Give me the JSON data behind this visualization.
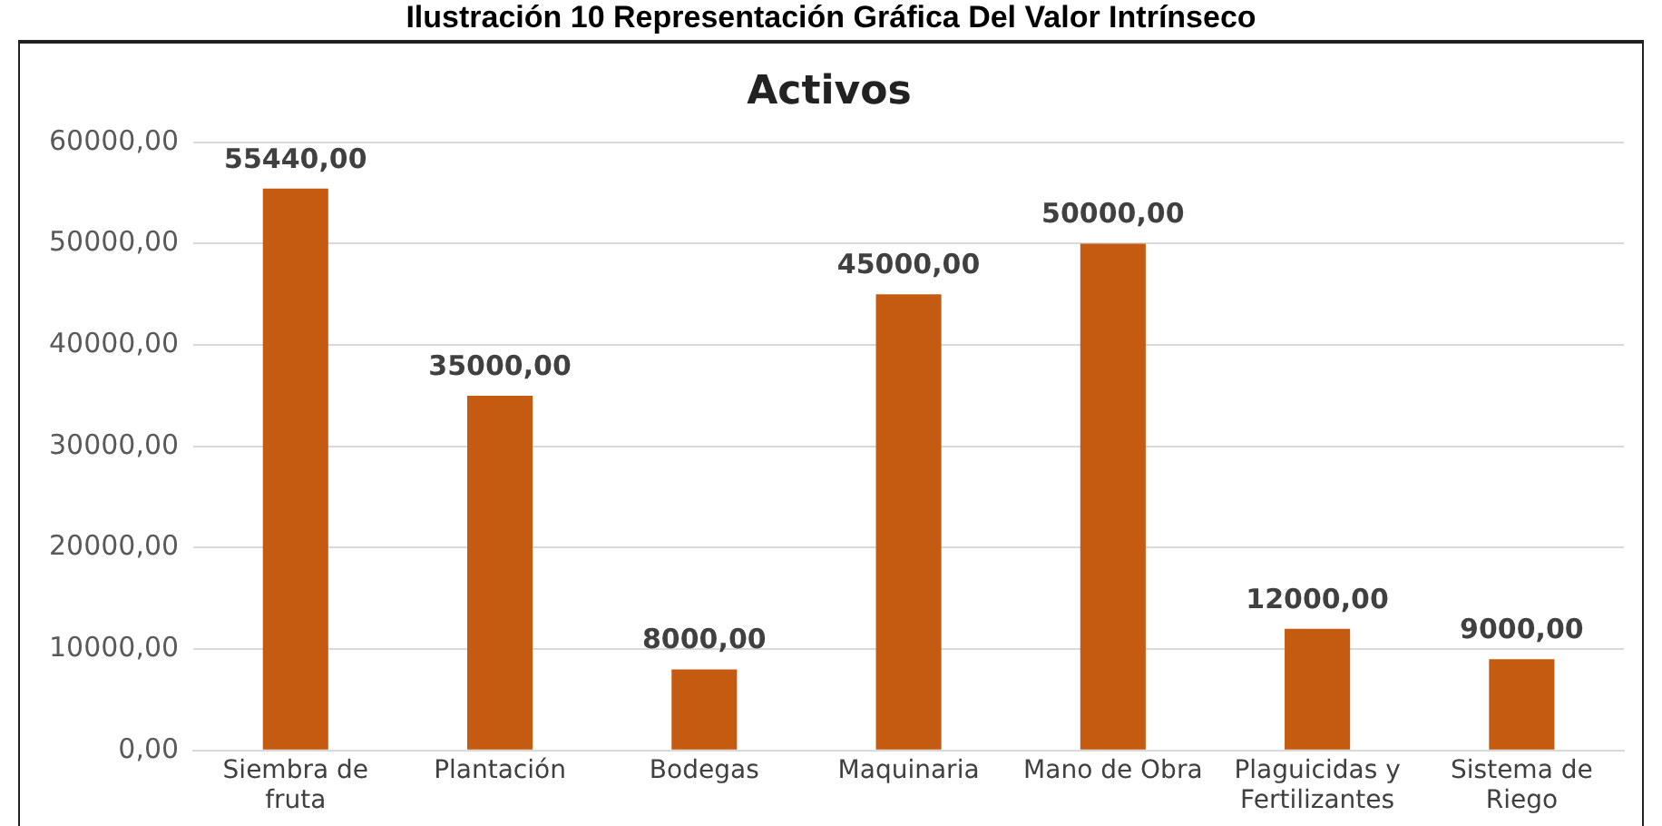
{
  "chart_data": {
    "type": "bar",
    "title": "Activos",
    "annotations": [
      "Ilustración 10 Representación Gráfica Del Valor Intrínseco"
    ],
    "categories": [
      "Siembra de fruta",
      "Plantación",
      "Bodegas",
      "Maquinaria",
      "Mano de Obra",
      "Plaguicidas y Fertilizantes",
      "Sistema de Riego"
    ],
    "values": [
      55440,
      35000,
      8000,
      45000,
      50000,
      12000,
      9000
    ],
    "value_labels": [
      "55440,00",
      "35000,00",
      "8000,00",
      "45000,00",
      "50000,00",
      "12000,00",
      "9000,00"
    ],
    "color": "#c55a11",
    "ylim": [
      0,
      60000
    ],
    "yticks": [
      {
        "value": 0,
        "label": "0,00"
      },
      {
        "value": 10000,
        "label": "10000,00"
      },
      {
        "value": 20000,
        "label": "20000,00"
      },
      {
        "value": 30000,
        "label": "30000,00"
      },
      {
        "value": 40000,
        "label": "40000,00"
      },
      {
        "value": 50000,
        "label": "50000,00"
      },
      {
        "value": 60000,
        "label": "60000,00"
      }
    ],
    "grid": "y",
    "legend": false
  }
}
